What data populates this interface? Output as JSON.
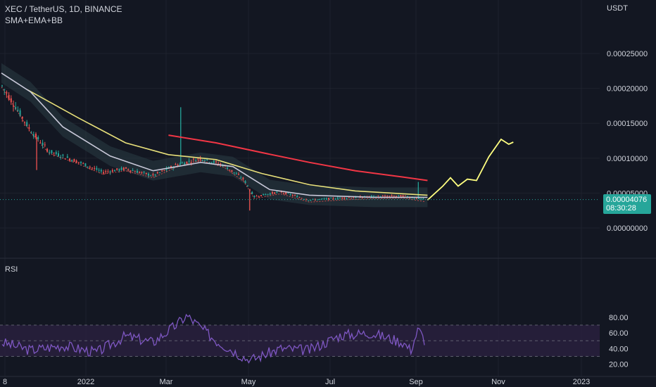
{
  "header": {
    "symbol": "XEC / TetherUS, 1D, BINANCE",
    "indicators": "SMA+EMA+BB",
    "currency": "USDT",
    "rsi_label": "RSI"
  },
  "last_price": {
    "value": "0.00004076",
    "countdown": "08:30:28",
    "color": "#26a69a"
  },
  "colors": {
    "background": "#131722",
    "up": "#26a69a",
    "down": "#ef5350",
    "sma_long": "#f23645",
    "ema_yellow": "#e8e07a",
    "bb_basis": "#c8c8d8",
    "ema_short": "#ef5350",
    "bb_fill": "#2a3d44",
    "projection": "#ffff80",
    "rsi_line": "#7e57c2",
    "rsi_band": "#2a2140"
  },
  "chart_data": [
    {
      "type": "candlestick",
      "title": "XEC / TetherUS, 1D, BINANCE",
      "ylabel": "USDT",
      "x_ticks": [
        "8",
        "2022",
        "Mar",
        "May",
        "Jul",
        "Sep",
        "Nov",
        "2023"
      ],
      "y_ticks": [
        "0.00000000",
        "0.00005000",
        "0.00010000",
        "0.00015000",
        "0.00020000",
        "0.00025000"
      ],
      "ylim": [
        -2e-05,
        0.00032
      ],
      "price_path": [
        {
          "x": "2021-12-01",
          "y": 0.000205
        },
        {
          "x": "2021-12-10",
          "y": 0.000175
        },
        {
          "x": "2021-12-20",
          "y": 0.00014
        },
        {
          "x": "2022-01-01",
          "y": 0.00011
        },
        {
          "x": "2022-01-20",
          "y": 9.5e-05
        },
        {
          "x": "2022-02-05",
          "y": 8e-05
        },
        {
          "x": "2022-02-20",
          "y": 8.5e-05
        },
        {
          "x": "2022-03-10",
          "y": 7.5e-05
        },
        {
          "x": "2022-03-25",
          "y": 9e-05
        },
        {
          "x": "2022-04-10",
          "y": 0.0001
        },
        {
          "x": "2022-04-25",
          "y": 9e-05
        },
        {
          "x": "2022-05-08",
          "y": 7e-05
        },
        {
          "x": "2022-05-15",
          "y": 4.5e-05
        },
        {
          "x": "2022-06-01",
          "y": 5.2e-05
        },
        {
          "x": "2022-06-20",
          "y": 4e-05
        },
        {
          "x": "2022-07-10",
          "y": 4.3e-05
        },
        {
          "x": "2022-07-30",
          "y": 4.5e-05
        },
        {
          "x": "2022-08-20",
          "y": 4.6e-05
        },
        {
          "x": "2022-09-03",
          "y": 4.08e-05
        }
      ],
      "spikes": [
        {
          "x": "2021-12-24",
          "low": 8.3e-05
        },
        {
          "x": "2022-03-28",
          "high": 0.000173
        },
        {
          "x": "2022-05-12",
          "low": 2.5e-05
        },
        {
          "x": "2022-08-30",
          "high": 6.6e-05
        }
      ],
      "series": [
        {
          "name": "SMA (long)",
          "color": "#f23645",
          "points": [
            {
              "x": "2022-03-20",
              "y": 0.000133
            },
            {
              "x": "2022-04-20",
              "y": 0.000122
            },
            {
              "x": "2022-05-20",
              "y": 0.000108
            },
            {
              "x": "2022-06-20",
              "y": 9.4e-05
            },
            {
              "x": "2022-07-20",
              "y": 8.2e-05
            },
            {
              "x": "2022-08-20",
              "y": 7.3e-05
            },
            {
              "x": "2022-09-05",
              "y": 6.8e-05
            }
          ]
        },
        {
          "name": "EMA (yellow)",
          "color": "#e8e07a",
          "points": [
            {
              "x": "2021-12-18",
              "y": 0.000198
            },
            {
              "x": "2022-01-20",
              "y": 0.000158
            },
            {
              "x": "2022-02-20",
              "y": 0.000122
            },
            {
              "x": "2022-03-20",
              "y": 0.000105
            },
            {
              "x": "2022-04-20",
              "y": 9.8e-05
            },
            {
              "x": "2022-05-20",
              "y": 7.8e-05
            },
            {
              "x": "2022-06-20",
              "y": 6.2e-05
            },
            {
              "x": "2022-07-20",
              "y": 5.3e-05
            },
            {
              "x": "2022-09-05",
              "y": 4.7e-05
            }
          ]
        },
        {
          "name": "BB basis",
          "color": "#c8c8d8",
          "points": [
            {
              "x": "2021-12-01",
              "y": 0.000222
            },
            {
              "x": "2021-12-20",
              "y": 0.000195
            },
            {
              "x": "2022-01-10",
              "y": 0.000145
            },
            {
              "x": "2022-02-10",
              "y": 0.000103
            },
            {
              "x": "2022-03-10",
              "y": 8.2e-05
            },
            {
              "x": "2022-04-10",
              "y": 9.4e-05
            },
            {
              "x": "2022-05-01",
              "y": 8.8e-05
            },
            {
              "x": "2022-05-25",
              "y": 5.5e-05
            },
            {
              "x": "2022-06-20",
              "y": 4.7e-05
            },
            {
              "x": "2022-08-01",
              "y": 4.4e-05
            },
            {
              "x": "2022-09-05",
              "y": 4.4e-05
            }
          ]
        }
      ],
      "projection": [
        {
          "x": "2022-09-05",
          "y": 4e-05
        },
        {
          "x": "2022-09-15",
          "y": 6e-05
        },
        {
          "x": "2022-09-20",
          "y": 7.2e-05
        },
        {
          "x": "2022-09-25",
          "y": 6e-05
        },
        {
          "x": "2022-10-01",
          "y": 7e-05
        },
        {
          "x": "2022-10-07",
          "y": 6.8e-05
        },
        {
          "x": "2022-10-15",
          "y": 0.000102
        },
        {
          "x": "2022-10-23",
          "y": 0.000127
        },
        {
          "x": "2022-10-28",
          "y": 0.00012
        },
        {
          "x": "2022-10-31",
          "y": 0.000123
        }
      ]
    },
    {
      "type": "line",
      "title": "RSI",
      "y_ticks": [
        "20.00",
        "40.00",
        "60.00",
        "80.00"
      ],
      "ylim": [
        17,
        87
      ],
      "bands": [
        30,
        50,
        70
      ],
      "values_path": [
        {
          "x": "2021-12-01",
          "y": 48
        },
        {
          "x": "2021-12-20",
          "y": 38
        },
        {
          "x": "2022-01-10",
          "y": 44
        },
        {
          "x": "2022-02-01",
          "y": 35
        },
        {
          "x": "2022-02-20",
          "y": 56
        },
        {
          "x": "2022-03-10",
          "y": 48
        },
        {
          "x": "2022-03-25",
          "y": 70
        },
        {
          "x": "2022-04-01",
          "y": 82
        },
        {
          "x": "2022-04-20",
          "y": 50
        },
        {
          "x": "2022-05-12",
          "y": 25
        },
        {
          "x": "2022-06-01",
          "y": 40
        },
        {
          "x": "2022-06-20",
          "y": 38
        },
        {
          "x": "2022-07-10",
          "y": 57
        },
        {
          "x": "2022-07-30",
          "y": 60
        },
        {
          "x": "2022-08-20",
          "y": 48
        },
        {
          "x": "2022-08-25",
          "y": 38
        },
        {
          "x": "2022-08-30",
          "y": 65
        },
        {
          "x": "2022-09-05",
          "y": 44
        }
      ]
    }
  ]
}
